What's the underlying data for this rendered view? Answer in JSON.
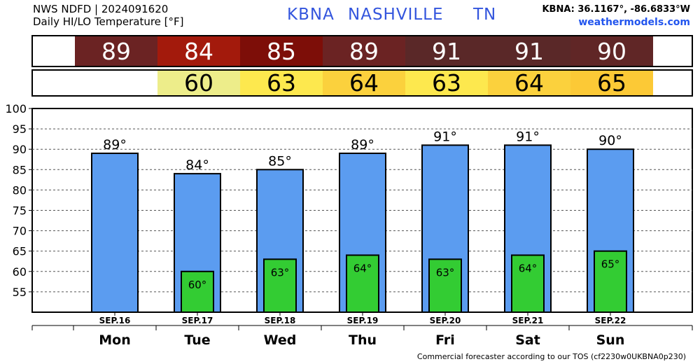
{
  "header": {
    "line1": "NWS NDFD | 2024091620",
    "line2": "Daily HI/LO Temperature [°F]",
    "station": "KBNA",
    "city": "NASHVILLE",
    "state": "TN",
    "coords": "KBNA: 36.1167°, -86.6833°W",
    "site": "weathermodels.com"
  },
  "footer": "Commercial forecaster according to our TOS (cf2230w0UKBNA0p230)",
  "hi_strip": {
    "values": [
      "89",
      "84",
      "85",
      "89",
      "91",
      "91",
      "90"
    ],
    "colors": [
      "#6b2323",
      "#a31a0c",
      "#7d0e08",
      "#6b2323",
      "#5a2828",
      "#5a2828",
      "#602626"
    ]
  },
  "lo_strip": {
    "values": [
      "",
      "60",
      "63",
      "64",
      "63",
      "64",
      "65"
    ],
    "colors": [
      "#ffffff",
      "#eded8a",
      "#fde84e",
      "#fbd13d",
      "#fde84e",
      "#fbd13d",
      "#fcc936"
    ]
  },
  "colors": {
    "high_bar": "#5b9cf0",
    "low_bar": "#33cc33"
  },
  "chart_data": {
    "type": "bar",
    "categories": [
      "Mon",
      "Tue",
      "Wed",
      "Thu",
      "Fri",
      "Sat",
      "Sun"
    ],
    "dates": [
      "SEP.16",
      "SEP.17",
      "SEP.18",
      "SEP.19",
      "SEP.20",
      "SEP.21",
      "SEP.22"
    ],
    "series": [
      {
        "values": [
          89,
          84,
          85,
          89,
          91,
          91,
          90
        ],
        "labels": [
          "89°",
          "84°",
          "85°",
          "89°",
          "91°",
          "91°",
          "90°"
        ]
      },
      {
        "values": [
          null,
          60,
          63,
          64,
          63,
          64,
          65
        ],
        "labels": [
          "",
          "60°",
          "63°",
          "64°",
          "63°",
          "64°",
          "65°"
        ]
      }
    ],
    "yticks": [
      55,
      60,
      65,
      70,
      75,
      80,
      85,
      90,
      95,
      100
    ],
    "ylim": [
      50,
      100
    ],
    "grid": true
  }
}
